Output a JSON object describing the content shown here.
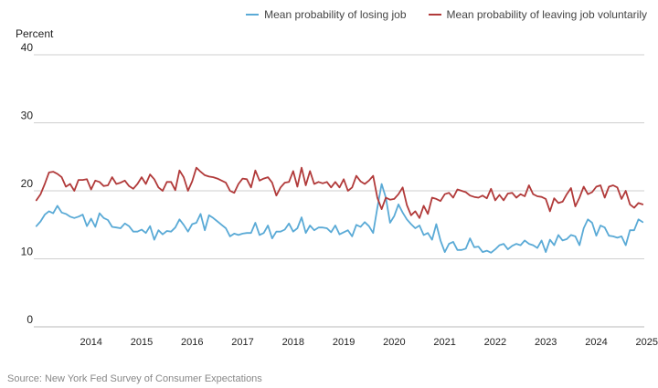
{
  "source": "Source: New York Fed Survey of Consumer Expectations",
  "chart_data": {
    "type": "line",
    "ylabel": "Percent",
    "ylim": [
      0,
      40
    ],
    "yticks": [
      0,
      10,
      20,
      30,
      40
    ],
    "xlim": [
      2013.42,
      2025.45
    ],
    "xticks": [
      "2014",
      "2015",
      "2016",
      "2017",
      "2018",
      "2019",
      "2020",
      "2021",
      "2022",
      "2023",
      "2024",
      "2025"
    ],
    "grid": "horizontal",
    "legend_position": "top-right",
    "x_start": "2013-06",
    "x_interval": "monthly",
    "series": [
      {
        "name": "Mean probability of losing job",
        "color": "#5aaad6",
        "values": [
          14.8,
          15.5,
          16.5,
          17.0,
          16.7,
          17.8,
          16.8,
          16.6,
          16.2,
          16.0,
          16.2,
          16.5,
          14.8,
          15.9,
          14.7,
          16.7,
          16.0,
          15.7,
          14.7,
          14.6,
          14.5,
          15.2,
          14.8,
          14.0,
          14.0,
          14.3,
          13.8,
          14.8,
          12.8,
          14.2,
          13.6,
          14.1,
          14.0,
          14.6,
          15.8,
          15.0,
          14.0,
          15.1,
          15.3,
          16.6,
          14.2,
          16.4,
          16.0,
          15.5,
          15.0,
          14.5,
          13.3,
          13.7,
          13.5,
          13.7,
          13.8,
          13.8,
          15.3,
          13.5,
          13.8,
          14.9,
          13.0,
          14.0,
          14.0,
          14.3,
          15.2,
          14.0,
          14.5,
          16.1,
          13.8,
          14.9,
          14.2,
          14.6,
          14.6,
          14.5,
          13.9,
          14.9,
          13.6,
          13.9,
          14.2,
          13.3,
          15.0,
          14.7,
          15.4,
          14.8,
          13.8,
          17.5,
          21.0,
          19.0,
          15.3,
          16.3,
          18.0,
          16.8,
          15.8,
          15.1,
          14.5,
          14.9,
          13.5,
          13.8,
          12.8,
          15.1,
          12.7,
          11.0,
          12.2,
          12.5,
          11.3,
          11.3,
          11.5,
          13.0,
          11.7,
          11.8,
          11.0,
          11.2,
          10.9,
          11.4,
          12.0,
          12.2,
          11.4,
          11.9,
          12.2,
          12.0,
          12.7,
          12.2,
          12.0,
          11.6,
          12.7,
          11.0,
          12.8,
          12.0,
          13.5,
          12.7,
          12.9,
          13.5,
          13.3,
          12.0,
          14.5,
          15.8,
          15.3,
          13.4,
          14.9,
          14.6,
          13.4,
          13.3,
          13.1,
          13.3,
          12.0,
          14.2,
          14.2,
          15.8,
          15.4
        ]
      },
      {
        "name": "Mean probability of leaving job voluntarily",
        "color": "#b13a3a",
        "values": [
          18.6,
          19.5,
          21.0,
          22.7,
          22.8,
          22.5,
          22.0,
          20.6,
          21.0,
          20.0,
          21.6,
          21.6,
          21.7,
          20.2,
          21.5,
          21.3,
          20.7,
          20.8,
          22.0,
          21.0,
          21.2,
          21.5,
          20.7,
          20.3,
          21.0,
          22.0,
          21.0,
          22.4,
          21.7,
          20.5,
          20.0,
          21.3,
          21.3,
          20.1,
          23.0,
          22.0,
          20.0,
          21.4,
          23.4,
          22.8,
          22.3,
          22.1,
          22.0,
          21.8,
          21.5,
          21.2,
          20.0,
          19.7,
          21.0,
          21.8,
          21.7,
          20.5,
          23.0,
          21.5,
          21.8,
          22.0,
          21.2,
          19.3,
          20.5,
          21.2,
          21.3,
          22.9,
          20.6,
          23.4,
          20.8,
          22.9,
          21.0,
          21.3,
          21.1,
          21.3,
          20.5,
          21.3,
          20.5,
          21.7,
          20.0,
          20.5,
          22.2,
          21.4,
          21.0,
          21.5,
          22.2,
          19.0,
          17.3,
          19.0,
          18.7,
          18.8,
          19.5,
          20.5,
          17.9,
          16.4,
          17.0,
          16.0,
          17.8,
          16.6,
          19.0,
          18.8,
          18.5,
          19.5,
          19.7,
          19.0,
          20.2,
          20.0,
          19.8,
          19.3,
          19.1,
          19.0,
          19.3,
          18.9,
          20.3,
          18.6,
          19.4,
          18.6,
          19.6,
          19.7,
          19.0,
          19.5,
          19.2,
          20.8,
          19.5,
          19.2,
          19.1,
          18.8,
          17.0,
          18.9,
          18.2,
          18.4,
          19.5,
          20.4,
          17.7,
          19.0,
          20.6,
          19.5,
          19.8,
          20.6,
          20.8,
          19.0,
          20.6,
          20.8,
          20.5,
          18.8,
          20.0,
          18.0,
          17.5,
          18.2,
          18.0
        ]
      }
    ]
  }
}
